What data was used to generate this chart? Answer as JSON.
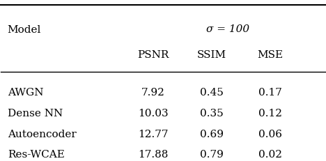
{
  "title": "σ = 100",
  "col_header_1": "Model",
  "col_header_2": "PSNR",
  "col_header_3": "SSIM",
  "col_header_4": "MSE",
  "rows": [
    [
      "AWGN",
      "7.92",
      "0.45",
      "0.17"
    ],
    [
      "Dense NN",
      "10.03",
      "0.35",
      "0.12"
    ],
    [
      "Autoencoder",
      "12.77",
      "0.69",
      "0.06"
    ],
    [
      "Res-WCAE",
      "17.88",
      "0.79",
      "0.02"
    ]
  ],
  "bg_color": "#ffffff",
  "text_color": "#000000",
  "font_size": 11
}
